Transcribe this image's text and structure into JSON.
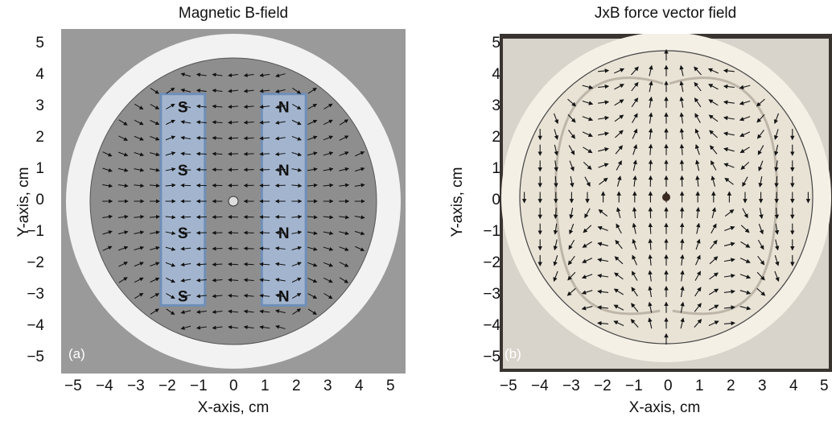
{
  "figure": {
    "panels": [
      {
        "id": "a",
        "title": "Magnetic B-field",
        "tag": "(a)",
        "xlabel": "X-axis, cm",
        "ylabel": "Y-axis, cm",
        "xlim": [
          -5,
          5
        ],
        "ylim": [
          -5,
          5
        ],
        "xticks": [
          "−5",
          "−4",
          "−3",
          "−2",
          "−1",
          "0",
          "1",
          "2",
          "3",
          "4",
          "5"
        ],
        "yticks": [
          "5",
          "4",
          "3",
          "2",
          "1",
          "0",
          "−1",
          "−2",
          "−3",
          "−4",
          "−5"
        ],
        "magnets": [
          {
            "x_range": [
              -2.3,
              -0.9
            ],
            "y_range": [
              -3.3,
              3.4
            ],
            "pole": "S",
            "labels": [
              "S",
              "S",
              "S",
              "S"
            ],
            "label_y": [
              3.0,
              1.0,
              -1.0,
              -3.0
            ]
          },
          {
            "x_range": [
              0.9,
              2.3
            ],
            "y_range": [
              -3.3,
              3.4
            ],
            "pole": "N",
            "labels": [
              "N",
              "N",
              "N",
              "N"
            ],
            "label_y": [
              3.0,
              1.0,
              -1.0,
              -3.0
            ]
          }
        ],
        "colors": {
          "plate": "#8e8e8e",
          "ring": "#f2f2f2",
          "background": "#9a9a9a",
          "magnet": "#a9c1e3",
          "magnet_edge": "#6f8fb8",
          "arrow": "#111111"
        }
      },
      {
        "id": "b",
        "title": "JxB force vector field",
        "tag": "(b)",
        "xlabel": "X-axis, cm",
        "ylabel": "Y-axis, cm",
        "xlim": [
          -5,
          5
        ],
        "ylim": [
          -5,
          5
        ],
        "xticks": [
          "−5",
          "−4",
          "−3",
          "−2",
          "−1",
          "0",
          "1",
          "2",
          "3",
          "4",
          "5"
        ],
        "yticks": [
          "5",
          "4",
          "3",
          "2",
          "1",
          "0",
          "−1",
          "−2",
          "−3",
          "−4",
          "−5"
        ],
        "colors": {
          "plate": "#e9e3d6",
          "ring": "#f4f0e6",
          "background": "#3a3430",
          "arrow": "#151515"
        }
      }
    ]
  }
}
